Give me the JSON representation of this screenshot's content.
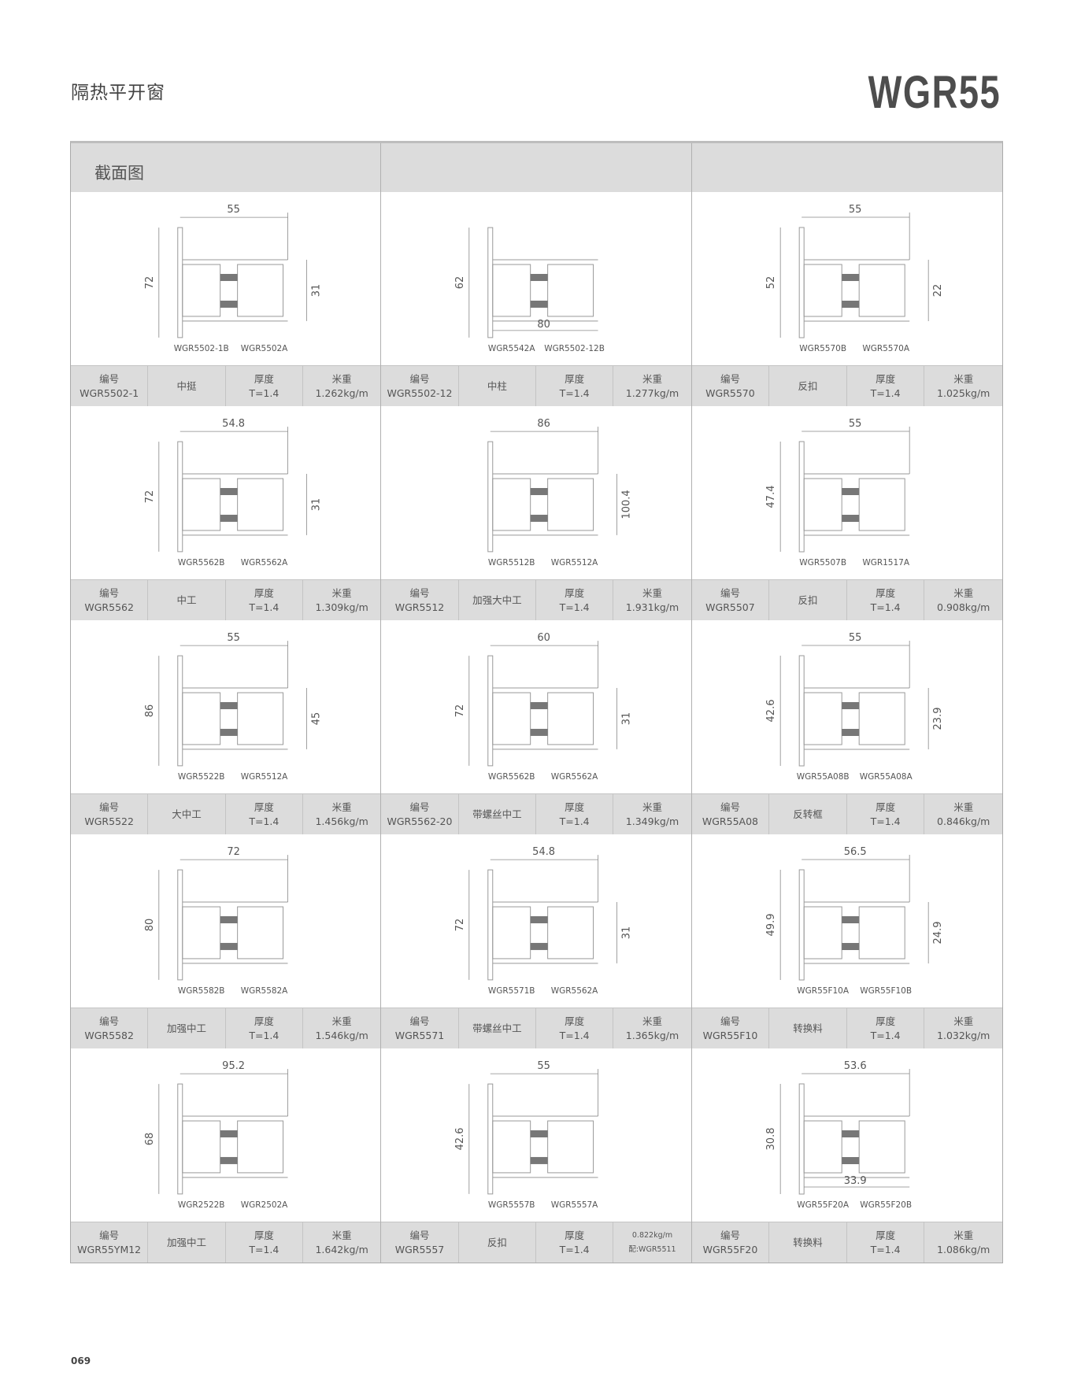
{
  "header": {
    "title": "隔热平开窗",
    "series": "WGR55"
  },
  "table": {
    "section_label": "截面图",
    "labels": {
      "code": "编号",
      "thickness": "厚度",
      "weight": "米重"
    },
    "cells": [
      {
        "code": "WGR5502-1",
        "name": "中挺",
        "thickness": "T=1.4",
        "weight_label": "米重",
        "weight": "1.262kg/m",
        "dims": {
          "top": "55",
          "left": "72",
          "right": "31"
        },
        "parts": [
          "WGR5502-1B",
          "WGR5502A"
        ]
      },
      {
        "code": "WGR5502-12",
        "name": "中柱",
        "thickness": "T=1.4",
        "weight_label": "米重",
        "weight": "1.277kg/m",
        "dims": {
          "left": "62",
          "bottom": "80"
        },
        "parts": [
          "WGR5542A",
          "WGR5502-12B"
        ]
      },
      {
        "code": "WGR5570",
        "name": "反扣",
        "thickness": "T=1.4",
        "weight_label": "米重",
        "weight": "1.025kg/m",
        "dims": {
          "top": "55",
          "left": "52",
          "right": "22"
        },
        "parts": [
          "WGR5570B",
          "WGR5570A"
        ]
      },
      {
        "code": "WGR5562",
        "name": "中工",
        "thickness": "T=1.4",
        "weight_label": "米重",
        "weight": "1.309kg/m",
        "dims": {
          "top": "54.8",
          "left": "72",
          "right": "31"
        },
        "parts": [
          "WGR5562B",
          "WGR5562A"
        ]
      },
      {
        "code": "WGR5512",
        "name": "加强大中工",
        "thickness": "T=1.4",
        "weight_label": "米重",
        "weight": "1.931kg/m",
        "dims": {
          "top": "86",
          "right": "100.4"
        },
        "parts": [
          "WGR5512B",
          "WGR5512A"
        ]
      },
      {
        "code": "WGR5507",
        "name": "反扣",
        "thickness": "T=1.4",
        "weight_label": "米重",
        "weight": "0.908kg/m",
        "dims": {
          "top": "55",
          "left": "47.4"
        },
        "parts": [
          "WGR5507B",
          "WGR1517A"
        ]
      },
      {
        "code": "WGR5522",
        "name": "大中工",
        "thickness": "T=1.4",
        "weight_label": "米重",
        "weight": "1.456kg/m",
        "dims": {
          "top": "55",
          "left": "86",
          "right": "45"
        },
        "parts": [
          "WGR5522B",
          "WGR5512A"
        ]
      },
      {
        "code": "WGR5562-20",
        "name": "带螺丝中工",
        "thickness": "T=1.4",
        "weight_label": "米重",
        "weight": "1.349kg/m",
        "dims": {
          "top": "60",
          "left": "72",
          "right": "31"
        },
        "parts": [
          "WGR5562B",
          "WGR5562A"
        ]
      },
      {
        "code": "WGR55A08",
        "name": "反转框",
        "thickness": "T=1.4",
        "weight_label": "米重",
        "weight": "0.846kg/m",
        "dims": {
          "top": "55",
          "left": "42.6",
          "right": "23.9"
        },
        "parts": [
          "WGR55A08B",
          "WGR55A08A"
        ]
      },
      {
        "code": "WGR5582",
        "name": "加强中工",
        "thickness": "T=1.4",
        "weight_label": "米重",
        "weight": "1.546kg/m",
        "dims": {
          "top": "72",
          "left": "80"
        },
        "parts": [
          "WGR5582B",
          "WGR5582A"
        ]
      },
      {
        "code": "WGR5571",
        "name": "带螺丝中工",
        "thickness": "T=1.4",
        "weight_label": "米重",
        "weight": "1.365kg/m",
        "dims": {
          "top": "54.8",
          "left": "72",
          "right": "31"
        },
        "parts": [
          "WGR5571B",
          "WGR5562A"
        ]
      },
      {
        "code": "WGR55F10",
        "name": "转换料",
        "thickness": "T=1.4",
        "weight_label": "米重",
        "weight": "1.032kg/m",
        "dims": {
          "top": "56.5",
          "left": "49.9",
          "right": "24.9"
        },
        "parts": [
          "WGR55F10A",
          "WGR55F10B"
        ]
      },
      {
        "code": "WGR55YM12",
        "name": "加强中工",
        "thickness": "T=1.4",
        "weight_label": "米重",
        "weight": "1.642kg/m",
        "dims": {
          "top": "95.2",
          "left": "68"
        },
        "parts": [
          "WGR2522B",
          "WGR2502A"
        ]
      },
      {
        "code": "WGR5557",
        "name": "反扣",
        "thickness": "T=1.4",
        "weight_label": "0.822kg/m",
        "weight": "配:WGR5511",
        "weight_small": true,
        "dims": {
          "top": "55",
          "left": "42.6"
        },
        "parts": [
          "WGR5557B",
          "WGR5557A"
        ]
      },
      {
        "code": "WGR55F20",
        "name": "转换料",
        "thickness": "T=1.4",
        "weight_label": "米重",
        "weight": "1.086kg/m",
        "dims": {
          "top": "53.6",
          "left": "30.8",
          "bottom": "33.9"
        },
        "parts": [
          "WGR55F20A",
          "WGR55F20B"
        ]
      }
    ]
  },
  "footer": {
    "page_number": "069"
  },
  "colors": {
    "header_band": "#dcdcdc",
    "line": "#999999",
    "thermal_strip": "#777777",
    "text": "#555555"
  }
}
